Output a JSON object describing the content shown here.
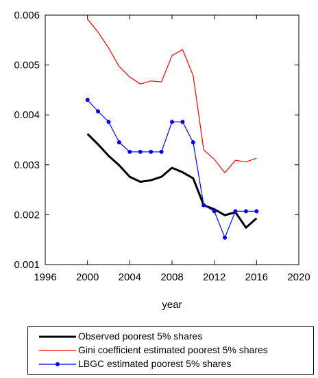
{
  "chart_data": {
    "type": "line",
    "xlabel": "year",
    "ylabel": "",
    "xlim": [
      1996,
      2020
    ],
    "ylim": [
      0.001,
      0.006
    ],
    "x_ticks": [
      "1996",
      "2000",
      "2004",
      "2008",
      "2012",
      "2016",
      "2020"
    ],
    "y_ticks": [
      "0.001",
      "0.002",
      "0.003",
      "0.004",
      "0.005",
      "0.006"
    ],
    "grid": false,
    "legend_position": "bottom",
    "x": [
      2000,
      2001,
      2002,
      2003,
      2004,
      2005,
      2006,
      2007,
      2008,
      2009,
      2010,
      2011,
      2012,
      2013,
      2014,
      2015,
      2016
    ],
    "series": [
      {
        "name": "Observed poorest 5% shares",
        "color": "#000000",
        "marker": false,
        "values": [
          0.00362,
          0.00341,
          0.00318,
          0.00299,
          0.00276,
          0.00266,
          0.00269,
          0.00276,
          0.00294,
          0.00285,
          0.00273,
          0.00219,
          0.00211,
          0.00199,
          0.00205,
          0.00174,
          0.00193
        ]
      },
      {
        "name": "Gini coefficient estimated poorest 5% shares",
        "color": "#ff0000",
        "marker": false,
        "values": [
          0.00592,
          0.00566,
          0.00534,
          0.00497,
          0.00476,
          0.00462,
          0.00468,
          0.00466,
          0.00519,
          0.00531,
          0.00479,
          0.0033,
          0.00311,
          0.00284,
          0.00309,
          0.00306,
          0.00313
        ]
      },
      {
        "name": "LBGC estimated poorest 5% shares",
        "color": "#0000ff",
        "marker": true,
        "values": [
          0.0043,
          0.00407,
          0.00386,
          0.00345,
          0.00326,
          0.00326,
          0.00326,
          0.00326,
          0.00386,
          0.00386,
          0.00345,
          0.00219,
          0.00207,
          0.00154,
          0.00207,
          0.00207,
          0.00207
        ]
      }
    ]
  }
}
